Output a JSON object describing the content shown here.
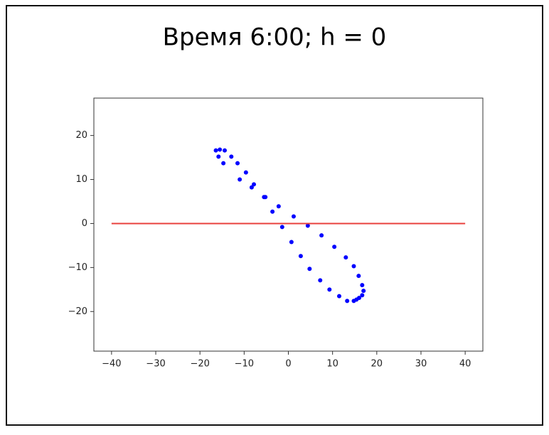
{
  "chart_data": {
    "type": "scatter",
    "title": "Время 6:00; h = 0",
    "xlim": [
      -44,
      44
    ],
    "ylim": [
      -29,
      28.5
    ],
    "xticks": [
      {
        "value": -40,
        "label": "−40"
      },
      {
        "value": -30,
        "label": "−30"
      },
      {
        "value": -20,
        "label": "−20"
      },
      {
        "value": -10,
        "label": "−10"
      },
      0,
      10,
      20,
      30,
      40
    ],
    "yticks": [
      {
        "value": -20,
        "label": "−20"
      },
      {
        "value": -10,
        "label": "−10"
      },
      0,
      10,
      20
    ],
    "series": [
      {
        "type": "scatter",
        "color": "#0000ff",
        "x": [
          -16.4,
          -15.5,
          -14.4,
          -15.8,
          -14.7,
          -12.9,
          -11.5,
          -9.6,
          -11.0,
          -7.8,
          -8.3,
          -5.5,
          -5.2,
          -3.6,
          -2.2,
          1.2,
          -1.4,
          4.4,
          0.7,
          7.5,
          2.8,
          10.4,
          4.8,
          13.0,
          14.8,
          7.2,
          15.9,
          16.7,
          9.3,
          17.0,
          16.7,
          16.0,
          11.5,
          13.3,
          14.8,
          15.4
        ],
        "values": [
          16.6,
          16.8,
          16.6,
          15.2,
          13.7,
          15.2,
          13.7,
          11.6,
          10.0,
          8.9,
          8.2,
          6.0,
          6.0,
          2.7,
          3.9,
          1.6,
          -0.8,
          -0.5,
          -4.2,
          -2.7,
          -7.4,
          -5.3,
          -10.3,
          -7.7,
          -9.7,
          -12.9,
          -11.9,
          -14.0,
          -15.0,
          -15.3,
          -16.3,
          -16.9,
          -16.5,
          -17.6,
          -17.6,
          -17.3
        ]
      },
      {
        "type": "line",
        "color": "#e8413c",
        "x": [
          -40,
          40
        ],
        "values": [
          0,
          0
        ]
      }
    ]
  }
}
